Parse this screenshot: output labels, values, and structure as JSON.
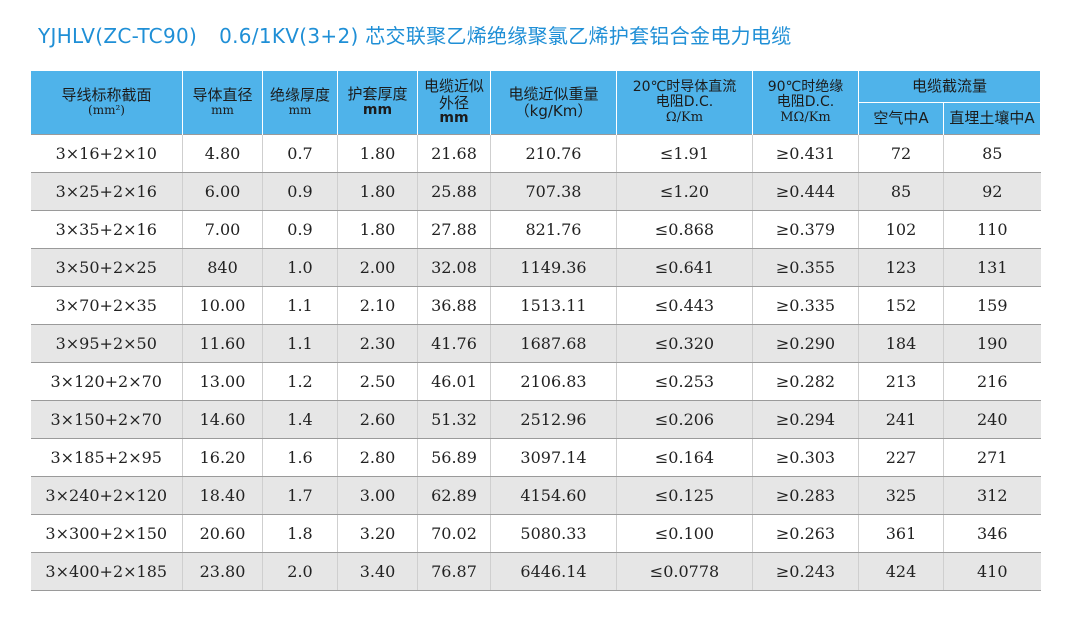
{
  "title": {
    "model": "YJHLV(ZC-TC90)",
    "desc": "0.6/1KV(3+2) 芯交联聚乙烯绝缘聚氯乙烯护套铝合金电力电缆"
  },
  "header": {
    "col1": {
      "line1": "导线标称截面",
      "line2": "(mm²)"
    },
    "col2": {
      "line1": "导体直径",
      "line2": "mm"
    },
    "col3": {
      "line1": "绝缘厚度",
      "line2": "mm"
    },
    "col4": {
      "line1": "护套厚度",
      "line2": "mm"
    },
    "col5": {
      "line1": "电缆近似",
      "line2": "外径",
      "line3": "mm"
    },
    "col6": {
      "line1": "电缆近似重量",
      "line2": "（kg/Km）"
    },
    "col7": {
      "line1": "20℃时导体直流",
      "line2": "电阻D.C.",
      "line3": "Ω/Km"
    },
    "col8": {
      "line1": "90℃时绝缘",
      "line2": "电阻D.C.",
      "line3": "MΩ/Km"
    },
    "col9": {
      "line1": "电缆截流量",
      "sub1": "空气中A",
      "sub2": "直埋土壤中A"
    }
  },
  "rows": [
    [
      "3×16+2×10",
      "4.80",
      "0.7",
      "1.80",
      "21.68",
      "210.76",
      "≤1.91",
      "≥0.431",
      "72",
      "85"
    ],
    [
      "3×25+2×16",
      "6.00",
      "0.9",
      "1.80",
      "25.88",
      "707.38",
      "≤1.20",
      "≥0.444",
      "85",
      "92"
    ],
    [
      "3×35+2×16",
      "7.00",
      "0.9",
      "1.80",
      "27.88",
      "821.76",
      "≤0.868",
      "≥0.379",
      "102",
      "110"
    ],
    [
      "3×50+2×25",
      "840",
      "1.0",
      "2.00",
      "32.08",
      "1149.36",
      "≤0.641",
      "≥0.355",
      "123",
      "131"
    ],
    [
      "3×70+2×35",
      "10.00",
      "1.1",
      "2.10",
      "36.88",
      "1513.11",
      "≤0.443",
      "≥0.335",
      "152",
      "159"
    ],
    [
      "3×95+2×50",
      "11.60",
      "1.1",
      "2.30",
      "41.76",
      "1687.68",
      "≤0.320",
      "≥0.290",
      "184",
      "190"
    ],
    [
      "3×120+2×70",
      "13.00",
      "1.2",
      "2.50",
      "46.01",
      "2106.83",
      "≤0.253",
      "≥0.282",
      "213",
      "216"
    ],
    [
      "3×150+2×70",
      "14.60",
      "1.4",
      "2.60",
      "51.32",
      "2512.96",
      "≤0.206",
      "≥0.294",
      "241",
      "240"
    ],
    [
      "3×185+2×95",
      "16.20",
      "1.6",
      "2.80",
      "56.89",
      "3097.14",
      "≤0.164",
      "≥0.303",
      "227",
      "271"
    ],
    [
      "3×240+2×120",
      "18.40",
      "1.7",
      "3.00",
      "62.89",
      "4154.60",
      "≤0.125",
      "≥0.283",
      "325",
      "312"
    ],
    [
      "3×300+2×150",
      "20.60",
      "1.8",
      "3.20",
      "70.02",
      "5080.33",
      "≤0.100",
      "≥0.263",
      "361",
      "346"
    ],
    [
      "3×400+2×185",
      "23.80",
      "2.0",
      "3.40",
      "76.87",
      "6446.14",
      "≤0.0778",
      "≥0.243",
      "424",
      "410"
    ]
  ]
}
